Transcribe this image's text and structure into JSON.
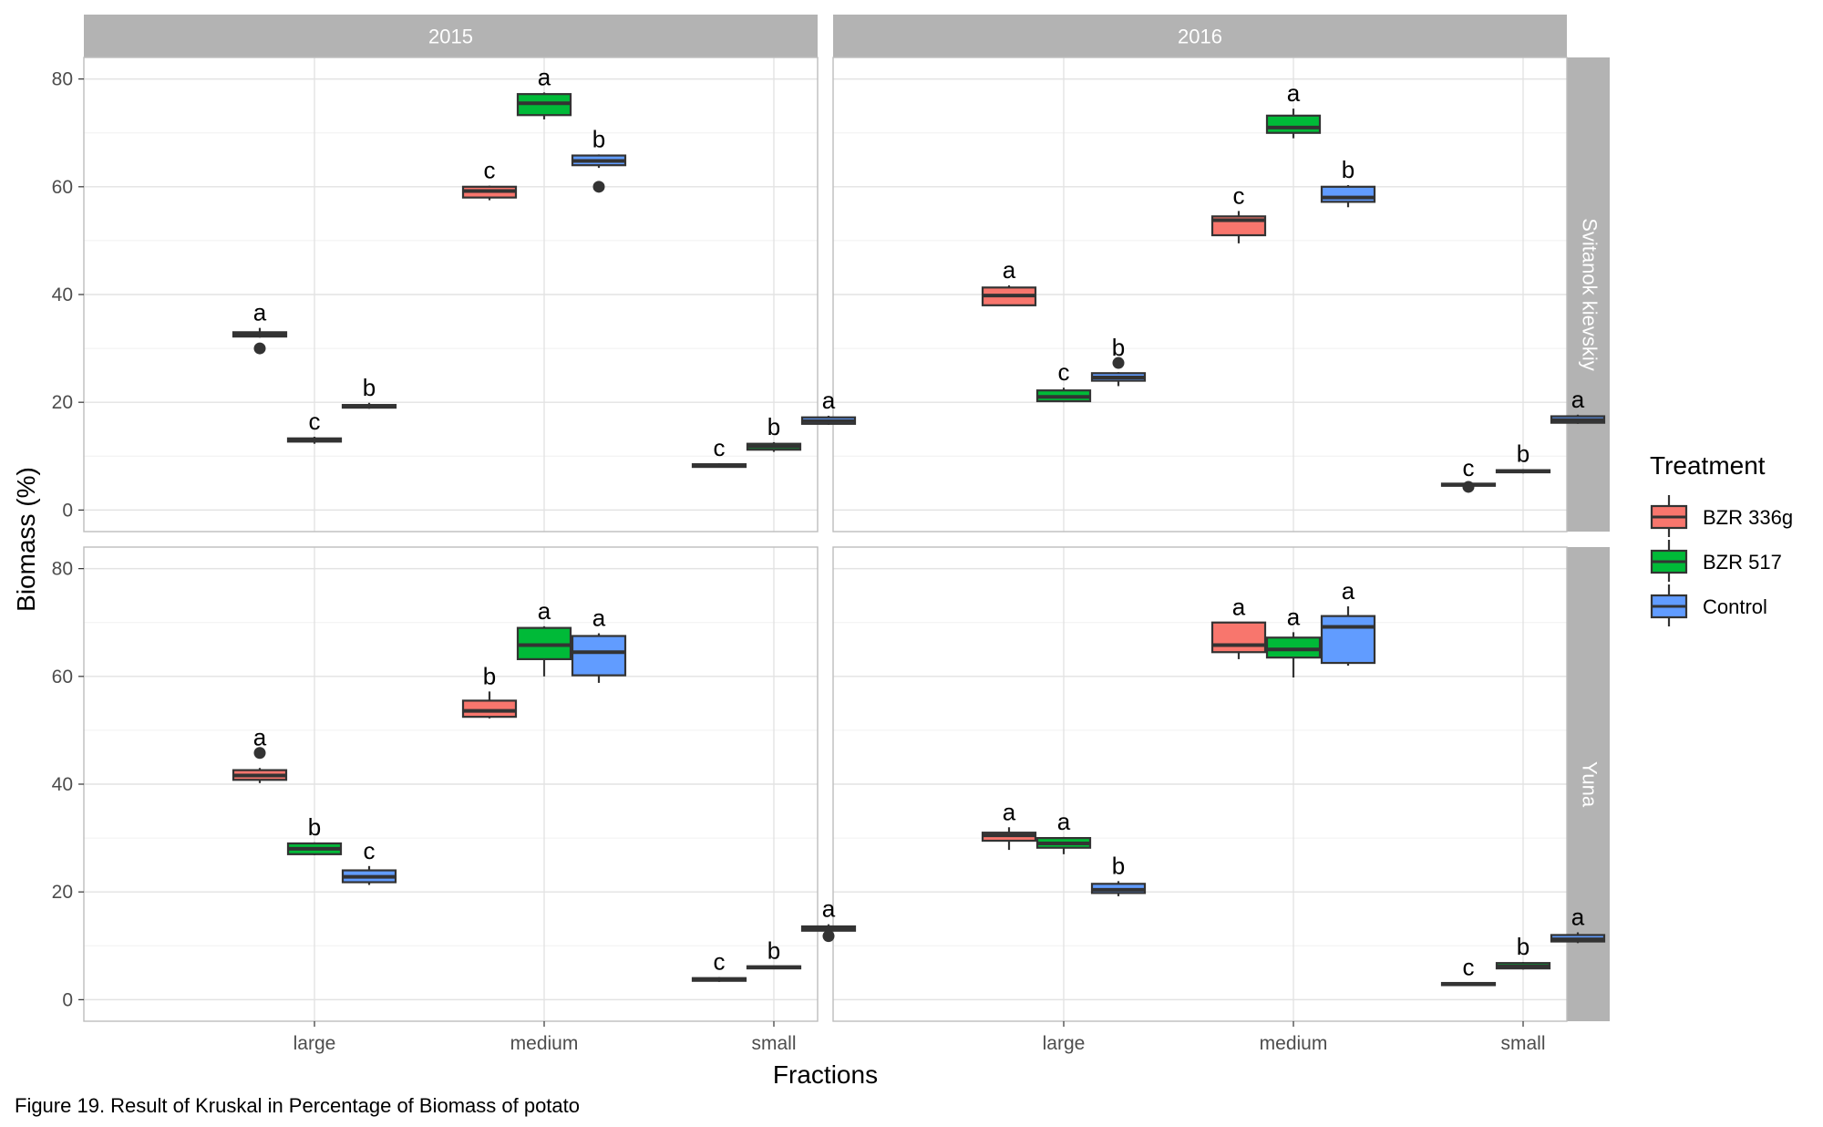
{
  "chart_data": {
    "type": "boxplot",
    "xlabel": "Fractions",
    "ylabel": "Biomass (%)",
    "ylim": [
      -4,
      84
    ],
    "y_ticks": [
      0,
      20,
      40,
      60,
      80
    ],
    "categories": [
      "large",
      "medium",
      "small"
    ],
    "column_facets": [
      "2015",
      "2016"
    ],
    "row_facets": [
      "Svitanok kievskiy",
      "Yuna"
    ],
    "grid": true,
    "legend": {
      "title": "Treatment",
      "position": "right",
      "entries": [
        {
          "name": "BZR 336g",
          "color": "#F8766D"
        },
        {
          "name": "BZR 517",
          "color": "#00BA38"
        },
        {
          "name": "Control",
          "color": "#619CFF"
        }
      ]
    },
    "panels": [
      {
        "column": "2015",
        "row": "Svitanok kievskiy",
        "boxes": [
          {
            "category": "large",
            "treatment": "BZR 336g",
            "min": 32,
            "q1": 32.2,
            "median": 32.6,
            "q3": 33.0,
            "max": 33.8,
            "outliers": [
              30
            ],
            "letter": "a"
          },
          {
            "category": "large",
            "treatment": "BZR 517",
            "min": 12.3,
            "q1": 12.7,
            "median": 13.0,
            "q3": 13.3,
            "max": 13.6,
            "outliers": [],
            "letter": "c"
          },
          {
            "category": "large",
            "treatment": "Control",
            "min": 18.8,
            "q1": 19.0,
            "median": 19.3,
            "q3": 19.5,
            "max": 19.9,
            "outliers": [],
            "letter": "b"
          },
          {
            "category": "medium",
            "treatment": "BZR 336g",
            "min": 57.5,
            "q1": 58.0,
            "median": 59.2,
            "q3": 60.0,
            "max": 60.2,
            "outliers": [],
            "letter": "c"
          },
          {
            "category": "medium",
            "treatment": "BZR 517",
            "min": 72.5,
            "q1": 73.3,
            "median": 75.5,
            "q3": 77.2,
            "max": 77.5,
            "outliers": [],
            "letter": "a"
          },
          {
            "category": "medium",
            "treatment": "Control",
            "min": 63.5,
            "q1": 64.0,
            "median": 64.8,
            "q3": 65.8,
            "max": 66.0,
            "outliers": [
              60
            ],
            "letter": "b"
          },
          {
            "category": "small",
            "treatment": "BZR 336g",
            "min": 7.9,
            "q1": 8.0,
            "median": 8.3,
            "q3": 8.5,
            "max": 8.7,
            "outliers": [],
            "letter": "c"
          },
          {
            "category": "small",
            "treatment": "BZR 517",
            "min": 10.8,
            "q1": 11.2,
            "median": 11.8,
            "q3": 12.3,
            "max": 12.6,
            "outliers": [],
            "letter": "b"
          },
          {
            "category": "small",
            "treatment": "Control",
            "min": 15.8,
            "q1": 16.0,
            "median": 16.5,
            "q3": 17.2,
            "max": 17.5,
            "outliers": [],
            "letter": "a"
          }
        ]
      },
      {
        "column": "2016",
        "row": "Svitanok kievskiy",
        "boxes": [
          {
            "category": "large",
            "treatment": "BZR 336g",
            "min": 37.9,
            "q1": 38.0,
            "median": 39.8,
            "q3": 41.3,
            "max": 41.7,
            "outliers": [],
            "letter": "a"
          },
          {
            "category": "large",
            "treatment": "BZR 517",
            "min": 20.0,
            "q1": 20.2,
            "median": 21.0,
            "q3": 22.2,
            "max": 22.7,
            "outliers": [],
            "letter": "c"
          },
          {
            "category": "large",
            "treatment": "Control",
            "min": 23.0,
            "q1": 24.0,
            "median": 24.6,
            "q3": 25.4,
            "max": 25.6,
            "outliers": [
              27.3
            ],
            "letter": "b"
          },
          {
            "category": "medium",
            "treatment": "BZR 336g",
            "min": 49.5,
            "q1": 51.0,
            "median": 53.8,
            "q3": 54.5,
            "max": 55.5,
            "outliers": [],
            "letter": "c"
          },
          {
            "category": "medium",
            "treatment": "BZR 517",
            "min": 69.0,
            "q1": 70.0,
            "median": 71.0,
            "q3": 73.2,
            "max": 74.5,
            "outliers": [],
            "letter": "a"
          },
          {
            "category": "medium",
            "treatment": "Control",
            "min": 56.2,
            "q1": 57.2,
            "median": 58.0,
            "q3": 60.0,
            "max": 60.3,
            "outliers": [],
            "letter": "b"
          },
          {
            "category": "small",
            "treatment": "BZR 336g",
            "min": 4.5,
            "q1": 4.5,
            "median": 4.7,
            "q3": 4.9,
            "max": 5.0,
            "outliers": [
              4.3
            ],
            "letter": "c"
          },
          {
            "category": "small",
            "treatment": "BZR 517",
            "min": 6.8,
            "q1": 7.0,
            "median": 7.2,
            "q3": 7.4,
            "max": 7.6,
            "outliers": [],
            "letter": "b"
          },
          {
            "category": "small",
            "treatment": "Control",
            "min": 16.0,
            "q1": 16.2,
            "median": 16.7,
            "q3": 17.4,
            "max": 17.7,
            "outliers": [],
            "letter": "a"
          }
        ]
      },
      {
        "column": "2015",
        "row": "Yuna",
        "boxes": [
          {
            "category": "large",
            "treatment": "BZR 336g",
            "min": 40.2,
            "q1": 40.8,
            "median": 41.6,
            "q3": 42.6,
            "max": 43.0,
            "outliers": [
              45.8
            ],
            "letter": "a"
          },
          {
            "category": "large",
            "treatment": "BZR 517",
            "min": 26.8,
            "q1": 27.0,
            "median": 28.0,
            "q3": 29.0,
            "max": 29.2,
            "outliers": [],
            "letter": "b"
          },
          {
            "category": "large",
            "treatment": "Control",
            "min": 21.3,
            "q1": 21.8,
            "median": 22.8,
            "q3": 24.0,
            "max": 24.8,
            "outliers": [],
            "letter": "c"
          },
          {
            "category": "medium",
            "treatment": "BZR 336g",
            "min": 52.2,
            "q1": 52.5,
            "median": 53.6,
            "q3": 55.5,
            "max": 57.2,
            "outliers": [],
            "letter": "b"
          },
          {
            "category": "medium",
            "treatment": "BZR 517",
            "min": 60.0,
            "q1": 63.2,
            "median": 65.8,
            "q3": 69.0,
            "max": 69.3,
            "outliers": [],
            "letter": "a"
          },
          {
            "category": "medium",
            "treatment": "Control",
            "min": 58.8,
            "q1": 60.2,
            "median": 64.5,
            "q3": 67.5,
            "max": 68.0,
            "outliers": [],
            "letter": "a"
          },
          {
            "category": "small",
            "treatment": "BZR 336g",
            "min": 3.3,
            "q1": 3.5,
            "median": 3.8,
            "q3": 4.0,
            "max": 4.2,
            "outliers": [],
            "letter": "c"
          },
          {
            "category": "small",
            "treatment": "BZR 517",
            "min": 5.8,
            "q1": 5.8,
            "median": 6.0,
            "q3": 6.2,
            "max": 6.2,
            "outliers": [],
            "letter": "b"
          },
          {
            "category": "small",
            "treatment": "Control",
            "min": 12.8,
            "q1": 12.8,
            "median": 13.2,
            "q3": 13.6,
            "max": 14.0,
            "outliers": [
              11.8
            ],
            "letter": "a"
          }
        ]
      },
      {
        "column": "2016",
        "row": "Yuna",
        "boxes": [
          {
            "category": "large",
            "treatment": "BZR 336g",
            "min": 27.8,
            "q1": 29.5,
            "median": 30.5,
            "q3": 31.0,
            "max": 32.0,
            "outliers": [],
            "letter": "a"
          },
          {
            "category": "large",
            "treatment": "BZR 517",
            "min": 27.0,
            "q1": 28.2,
            "median": 29.0,
            "q3": 30.0,
            "max": 30.2,
            "outliers": [],
            "letter": "a"
          },
          {
            "category": "large",
            "treatment": "Control",
            "min": 19.2,
            "q1": 19.8,
            "median": 20.4,
            "q3": 21.5,
            "max": 22.0,
            "outliers": [],
            "letter": "b"
          },
          {
            "category": "medium",
            "treatment": "BZR 336g",
            "min": 63.2,
            "q1": 64.5,
            "median": 65.8,
            "q3": 70.0,
            "max": 70.0,
            "outliers": [],
            "letter": "a"
          },
          {
            "category": "medium",
            "treatment": "BZR 517",
            "min": 59.8,
            "q1": 63.5,
            "median": 65.0,
            "q3": 67.2,
            "max": 68.2,
            "outliers": [],
            "letter": "a"
          },
          {
            "category": "medium",
            "treatment": "Control",
            "min": 62.0,
            "q1": 62.5,
            "median": 69.2,
            "q3": 71.2,
            "max": 73.0,
            "outliers": [],
            "letter": "a"
          },
          {
            "category": "small",
            "treatment": "BZR 336g",
            "min": 2.7,
            "q1": 2.7,
            "median": 2.9,
            "q3": 3.1,
            "max": 3.2,
            "outliers": [],
            "letter": "c"
          },
          {
            "category": "small",
            "treatment": "BZR 517",
            "min": 5.6,
            "q1": 5.8,
            "median": 6.2,
            "q3": 6.8,
            "max": 7.0,
            "outliers": [],
            "letter": "b"
          },
          {
            "category": "small",
            "treatment": "Control",
            "min": 10.5,
            "q1": 10.8,
            "median": 11.2,
            "q3": 12.0,
            "max": 12.5,
            "outliers": [],
            "letter": "a"
          }
        ]
      }
    ]
  },
  "caption": "Figure 19. Result of Kruskal in Percentage of Biomass of potato"
}
